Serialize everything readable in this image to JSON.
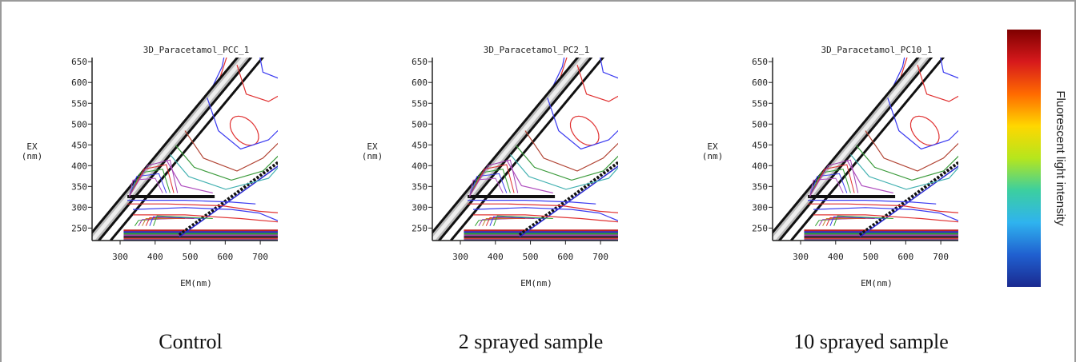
{
  "chart_data": [
    {
      "type": "contour",
      "title": "3D_Paracetamol_PCC_1",
      "xlabel": "EM(nm)",
      "ylabel": [
        "EX",
        "(nm)"
      ],
      "caption": "Control",
      "xlim": [
        220,
        750
      ],
      "ylim": [
        220,
        660
      ],
      "xticks": [
        300,
        400,
        500,
        600,
        700
      ],
      "yticks": [
        250,
        300,
        350,
        400,
        450,
        500,
        550,
        600,
        650
      ]
    },
    {
      "type": "contour",
      "title": "3D_Paracetamol_PC2_1",
      "xlabel": "EM(nm)",
      "ylabel": [
        "EX",
        "(nm)"
      ],
      "caption": "2 sprayed sample",
      "xlim": [
        220,
        750
      ],
      "ylim": [
        220,
        660
      ],
      "xticks": [
        300,
        400,
        500,
        600,
        700
      ],
      "yticks": [
        250,
        300,
        350,
        400,
        450,
        500,
        550,
        600,
        650
      ]
    },
    {
      "type": "contour",
      "title": "3D_Paracetamol_PC10_1",
      "xlabel": "EM(nm)",
      "ylabel": [
        "EX",
        "(nm)"
      ],
      "caption": "10 sprayed sample",
      "xlim": [
        220,
        750
      ],
      "ylim": [
        220,
        660
      ],
      "xticks": [
        300,
        400,
        500,
        600,
        700
      ],
      "yticks": [
        250,
        300,
        350,
        400,
        450,
        500,
        550,
        600,
        650
      ]
    }
  ],
  "colorbar": {
    "label": "Fluorescent light intensity",
    "colors": [
      "#7f0000",
      "#d7191c",
      "#ff6a00",
      "#ffd700",
      "#b5e61d",
      "#3ccfa0",
      "#2fb3ef",
      "#2060d0",
      "#1a2a90"
    ]
  }
}
